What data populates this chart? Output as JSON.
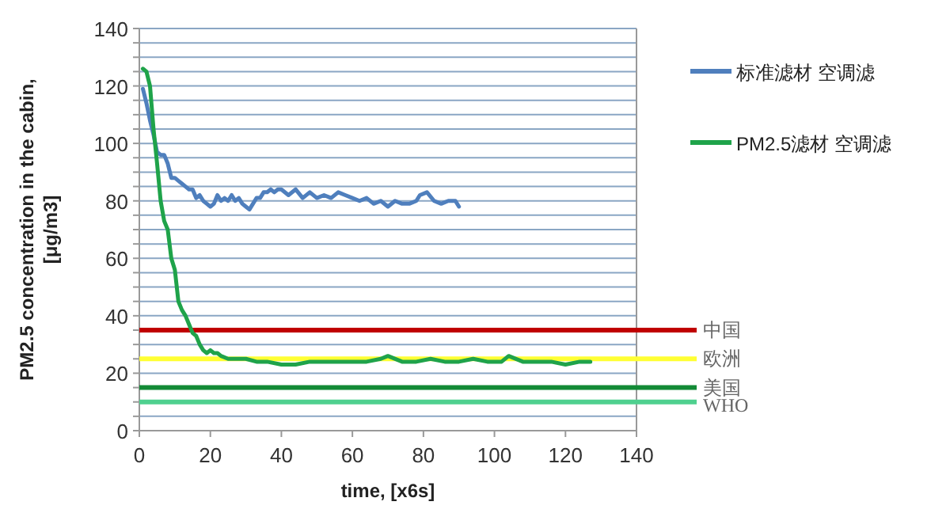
{
  "chart_data": {
    "type": "line",
    "xlabel": "time, [x6s]",
    "ylabel": "PM2.5 concentration in the cabin, [μg/m3]",
    "xlim": [
      0,
      140
    ],
    "xticks": [
      0,
      20,
      40,
      60,
      80,
      100,
      120,
      140
    ],
    "ylim": [
      0,
      140
    ],
    "yticks": [
      0,
      {
        "value": 5,
        "label": null
      },
      {
        "value": 10,
        "label": null
      },
      {
        "value": 15,
        "label": null
      },
      20,
      {
        "value": 25,
        "label": null
      },
      {
        "value": 30,
        "label": null
      },
      {
        "value": 35,
        "label": null
      },
      40,
      {
        "value": 45,
        "label": null
      },
      {
        "value": 50,
        "label": null
      },
      {
        "value": 55,
        "label": null
      },
      60,
      {
        "value": 65,
        "label": null
      },
      {
        "value": 70,
        "label": null
      },
      {
        "value": 75,
        "label": null
      },
      80,
      {
        "value": 85,
        "label": null
      },
      {
        "value": 90,
        "label": null
      },
      {
        "value": 95,
        "label": null
      },
      100,
      {
        "value": 105,
        "label": null
      },
      {
        "value": 110,
        "label": null
      },
      {
        "value": 115,
        "label": null
      },
      120,
      {
        "value": 125,
        "label": null
      },
      {
        "value": 130,
        "label": null
      },
      {
        "value": 135,
        "label": null
      },
      140
    ],
    "grid": "y",
    "legend": "right",
    "marker": "none",
    "line_style": "solid",
    "series": [
      {
        "name": "标准滤材 空调滤",
        "color": "#4f7fbd",
        "x": [
          1,
          2,
          3,
          4,
          5,
          6,
          7,
          8,
          9,
          10,
          11,
          12,
          13,
          14,
          15,
          16,
          17,
          18,
          19,
          20,
          21,
          22,
          23,
          24,
          25,
          26,
          27,
          28,
          29,
          30,
          31,
          32,
          33,
          34,
          35,
          36,
          37,
          38,
          39,
          40,
          42,
          44,
          46,
          48,
          50,
          52,
          54,
          56,
          58,
          60,
          62,
          64,
          66,
          68,
          70,
          72,
          74,
          76,
          78,
          79,
          81,
          83,
          85,
          87,
          89,
          90
        ],
        "values": [
          119,
          114,
          108,
          103,
          97,
          96,
          96,
          93,
          88,
          88,
          87,
          86,
          85,
          84,
          84,
          81,
          82,
          80,
          79,
          78,
          79,
          82,
          80,
          81,
          80,
          82,
          80,
          81,
          79,
          78,
          77,
          79,
          81,
          81,
          83,
          83,
          84,
          83,
          84,
          84,
          82,
          84,
          81,
          83,
          81,
          82,
          81,
          83,
          82,
          81,
          80,
          81,
          79,
          80,
          78,
          80,
          79,
          79,
          80,
          82,
          83,
          80,
          79,
          80,
          80,
          78
        ]
      },
      {
        "name": "PM2.5滤材 空调滤",
        "color": "#1fa34a",
        "x": [
          1,
          2,
          3,
          4,
          5,
          6,
          7,
          8,
          9,
          10,
          11,
          12,
          13,
          14,
          15,
          16,
          17,
          18,
          19,
          20,
          21,
          22,
          23,
          25,
          27,
          30,
          33,
          36,
          40,
          44,
          48,
          52,
          56,
          60,
          64,
          68,
          70,
          74,
          78,
          82,
          86,
          90,
          94,
          98,
          102,
          104,
          108,
          112,
          116,
          120,
          124,
          127
        ],
        "values": [
          126,
          125,
          120,
          105,
          93,
          80,
          73,
          70,
          60,
          56,
          45,
          42,
          40,
          37,
          34,
          33,
          30,
          28,
          27,
          28,
          27,
          27,
          26,
          25,
          25,
          25,
          24,
          24,
          23,
          23,
          24,
          24,
          24,
          24,
          24,
          25,
          26,
          24,
          24,
          25,
          24,
          24,
          25,
          24,
          24,
          26,
          24,
          24,
          24,
          23,
          24,
          24
        ]
      }
    ],
    "ref_lines": [
      {
        "axis": "y",
        "value": 35,
        "label": "中国",
        "color": "#c00000"
      },
      {
        "axis": "y",
        "value": 25,
        "label": "欧洲",
        "color": "#ffff33"
      },
      {
        "axis": "y",
        "value": 15,
        "label": "美国",
        "color": "#138a36"
      },
      {
        "axis": "y",
        "value": 10,
        "label": "WHO",
        "color": "#4fd08f"
      }
    ]
  }
}
